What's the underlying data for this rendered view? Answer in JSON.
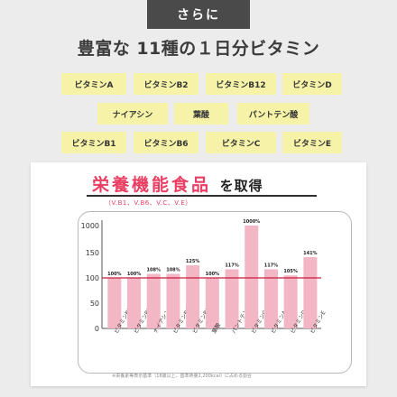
{
  "badge": "さらに",
  "headline": "豊富な 11種の１日分ビタミン",
  "vitamins": [
    "ビタミンA",
    "ビタミンB2",
    "ビタミンB12",
    "ビタミンD",
    "ナイアシン",
    "葉酸",
    "パントテン酸",
    "ビタミンB1",
    "ビタミンB6",
    "ビタミンC",
    "ビタミンE"
  ],
  "card": {
    "title": "栄養機能食品",
    "title_suffix": "を取得",
    "subtitle": "（V.B1、V.B6、V.C、V.E）",
    "footnote": "※栄養素等表示基準（18歳以上、基準熱量2,200kcal）に占める割合"
  },
  "colors": {
    "bar": "#f2b6c4",
    "refline": "#c81e3c",
    "title": "#ea3f63",
    "chip": "#f6f3a8"
  },
  "chart_data": {
    "type": "bar",
    "categories": [
      "ビタミンB1",
      "ビタミンB2",
      "ナイアシン",
      "ビタミンB6",
      "ビタミンB12",
      "葉酸",
      "パントテン酸",
      "ビタミンC",
      "ビタミンA",
      "ビタミンD",
      "ビタミンE"
    ],
    "values": [
      100,
      100,
      108,
      108,
      125,
      100,
      117,
      1000,
      117,
      105,
      141
    ],
    "value_labels": [
      "100%",
      "100%",
      "108%",
      "108%",
      "125%",
      "100%",
      "117%",
      "1000%",
      "117%",
      "105%",
      "141%"
    ],
    "y_ticks": [
      "1000",
      "150",
      "100",
      "50",
      "0"
    ],
    "reference_line": 100,
    "grid": false
  }
}
